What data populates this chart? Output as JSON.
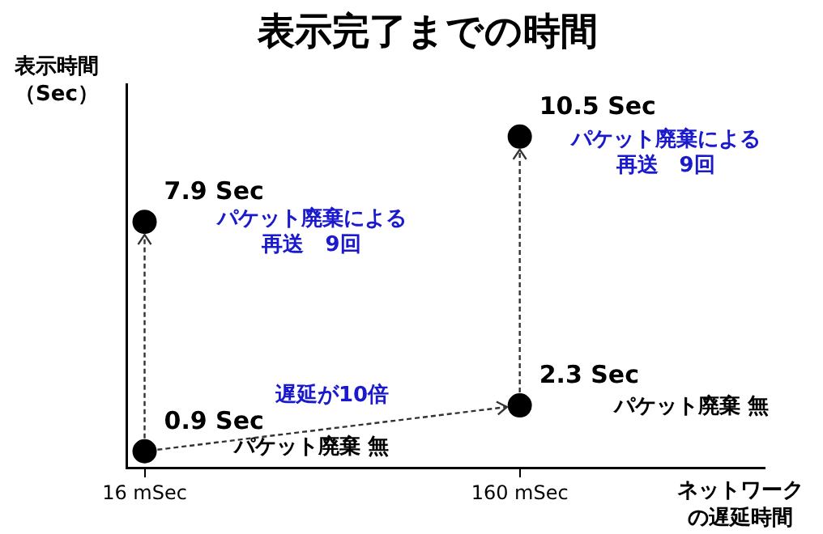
{
  "chart_data": {
    "type": "scatter",
    "title": "表示完了までの時間",
    "xlabel": "ネットワークの遅延時間",
    "ylabel": "表示時間（Sec）",
    "x": [
      16,
      160
    ],
    "series": [
      {
        "color": "#000000",
        "values": [
          0.9,
          2.3
        ],
        "value_labels": [
          "0.9 Sec",
          "2.3 Sec"
        ]
      },
      {
        "color": "#000000",
        "values": [
          7.9,
          10.5
        ],
        "value_labels": [
          "7.9 Sec",
          "10.5 Sec"
        ]
      }
    ],
    "xlim": [
      9,
      254
    ],
    "xticks": [
      {
        "value": 16,
        "label": "16 mSec"
      },
      {
        "value": 160,
        "label": "160 mSec"
      }
    ],
    "ylim": [
      0.4,
      12.1
    ],
    "tick_labels": "x",
    "marker": "circle",
    "grid": false,
    "legend": false,
    "annotations": [
      "パケット廃棄 無",
      "パケット廃棄による再送　9回",
      "パケット廃棄 無",
      "パケット廃棄による再送　9回",
      "遅延が10倍"
    ]
  }
}
